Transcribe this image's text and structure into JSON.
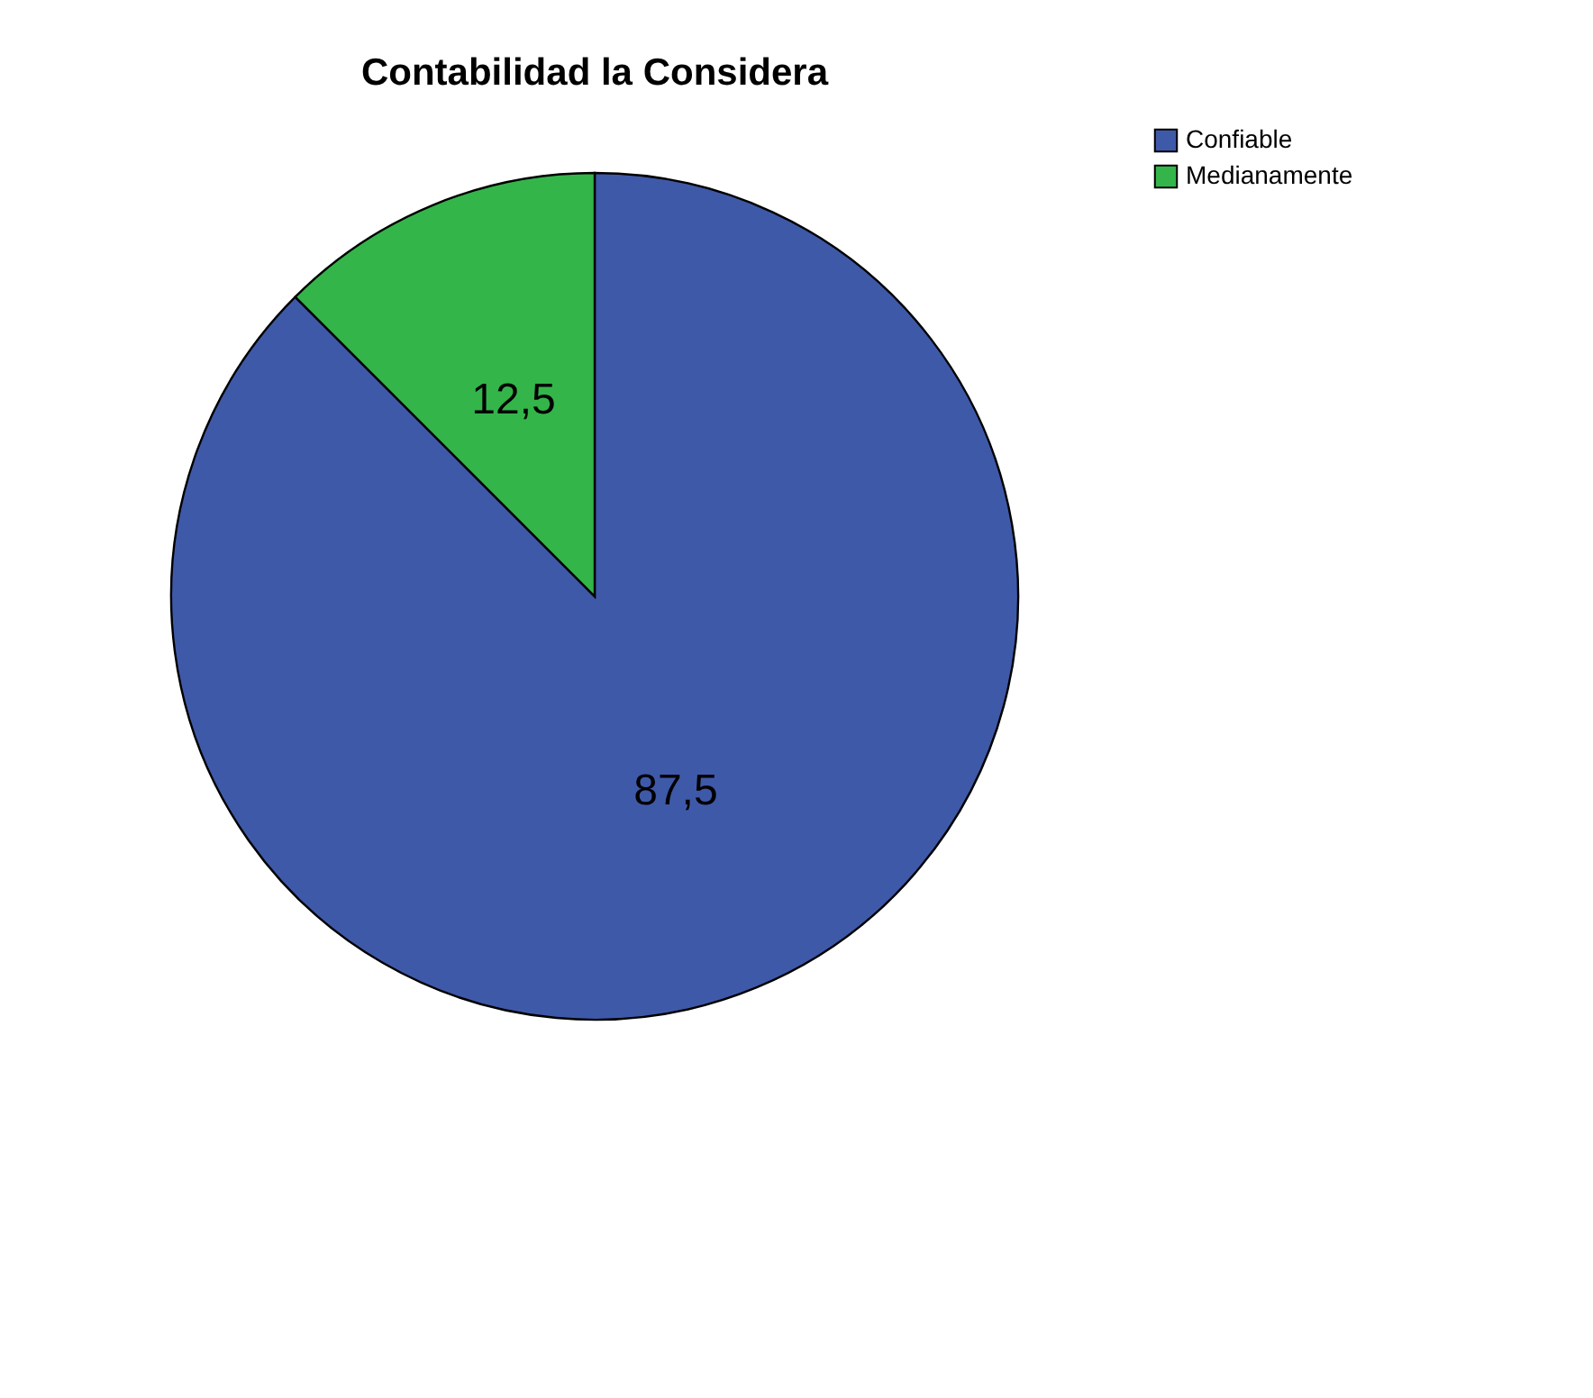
{
  "chart_data": {
    "type": "pie",
    "title": "Contabilidad la Considera",
    "categories": [
      "Confiable",
      "Medianamente"
    ],
    "values": [
      87.5,
      12.5
    ],
    "value_labels": [
      "87,5",
      "12,5"
    ],
    "colors": [
      "#3f59a9",
      "#33b54a"
    ],
    "legend": "top right"
  }
}
